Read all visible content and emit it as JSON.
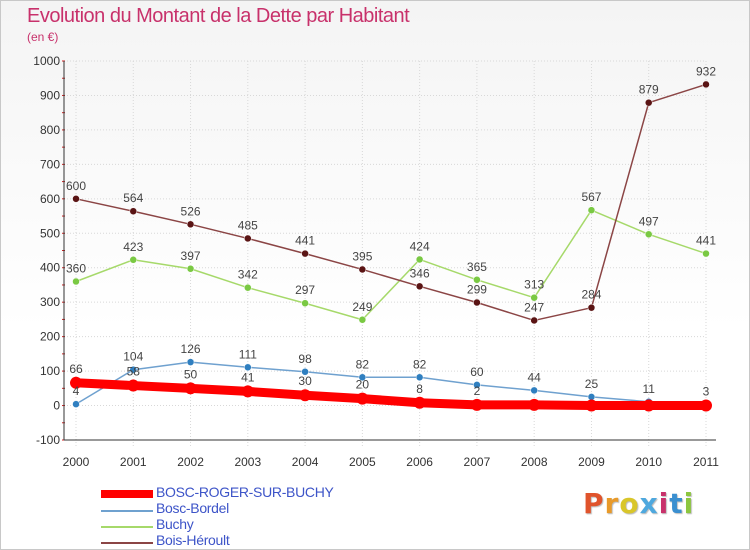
{
  "header": {
    "title": "Evolution du Montant de la Dette par Habitant",
    "subtitle": "(en €)"
  },
  "branding": {
    "logo_text": "Proxiti",
    "logo_colors": [
      "#e0542c",
      "#e89a2a",
      "#d9c62a",
      "#4ea8de",
      "#c8316b",
      "#3a8fd0",
      "#8cc63f"
    ]
  },
  "colors": {
    "title": "#c8316b",
    "axis": "#333333",
    "grid": "#d8d8d8",
    "legend_text": "#3d54c8",
    "tick_mark": "#cc2222"
  },
  "chart_data": {
    "type": "line",
    "title": "Evolution du Montant de la Dette par Habitant",
    "subtitle": "(en €)",
    "xlabel": "",
    "ylabel": "",
    "x": [
      "2000",
      "2001",
      "2002",
      "2003",
      "2004",
      "2005",
      "2006",
      "2007",
      "2008",
      "2009",
      "2010",
      "2011"
    ],
    "ylim": [
      -100,
      1000
    ],
    "yticks": [
      -100,
      0,
      100,
      200,
      300,
      400,
      500,
      600,
      700,
      800,
      900,
      1000
    ],
    "grid": true,
    "legend_position": "bottom-left",
    "series": [
      {
        "name": "BOSC-ROGER-SUR-BUCHY",
        "values": [
          66,
          58,
          50,
          41,
          30,
          20,
          8,
          2,
          2,
          0,
          0,
          0
        ],
        "labels": [
          "66",
          "58",
          "50",
          "41",
          "30",
          "20",
          "8",
          "2",
          "",
          "",
          "",
          ""
        ],
        "color": "#ff0000",
        "bold": true
      },
      {
        "name": "Bosc-Bordel",
        "values": [
          4,
          104,
          126,
          111,
          98,
          82,
          82,
          60,
          44,
          25,
          11,
          3
        ],
        "labels": [
          "4",
          "104",
          "126",
          "111",
          "98",
          "82",
          "82",
          "60",
          "44",
          "25",
          "11",
          "3"
        ],
        "color": "#6fa1cf",
        "marker": "#2f7fc0"
      },
      {
        "name": "Buchy",
        "values": [
          360,
          423,
          397,
          342,
          297,
          249,
          424,
          365,
          313,
          567,
          497,
          441
        ],
        "labels": [
          "360",
          "423",
          "397",
          "342",
          "297",
          "249",
          "424",
          "365",
          "313",
          "567",
          "497",
          "441"
        ],
        "color": "#a6d96a",
        "marker": "#7ac943"
      },
      {
        "name": "Bois-Héroult",
        "values": [
          600,
          564,
          526,
          485,
          441,
          395,
          346,
          299,
          247,
          284,
          879,
          932
        ],
        "labels": [
          "600",
          "564",
          "526",
          "485",
          "441",
          "395",
          "346",
          "299",
          "247",
          "284",
          "879",
          "932"
        ],
        "color": "#8b4545",
        "marker": "#5a1414"
      }
    ]
  }
}
